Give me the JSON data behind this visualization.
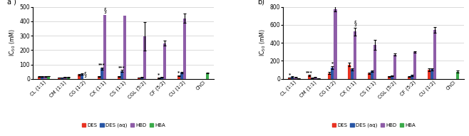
{
  "categories": [
    "CL (1:1)",
    "CM (1:1)",
    "CG (1:2)",
    "CX (1:1)",
    "CS (1:1)",
    "CGL (5:2)",
    "CF (5:2)",
    "CU (1:2)",
    "ChCl"
  ],
  "panel_a": {
    "ylabel": "IC$_{50}$ (mM)",
    "ylim": [
      0,
      500
    ],
    "yticks": [
      0,
      100,
      200,
      300,
      400,
      500
    ],
    "DES": [
      15,
      8,
      30,
      17,
      17,
      8,
      7,
      22,
      0
    ],
    "DESaq": [
      17,
      9,
      35,
      72,
      55,
      10,
      12,
      45,
      0
    ],
    "HBD": [
      17,
      12,
      0,
      445,
      440,
      295,
      248,
      420,
      0
    ],
    "HBA": [
      19,
      12,
      0,
      0,
      0,
      0,
      0,
      0,
      40
    ],
    "DES_err": [
      2,
      1,
      5,
      2,
      2,
      1,
      1,
      3,
      0
    ],
    "DESaq_err": [
      2,
      1,
      4,
      8,
      7,
      2,
      2,
      5,
      0
    ],
    "HBD_err": [
      2,
      1,
      0,
      0,
      0,
      100,
      18,
      32,
      0
    ],
    "HBA_err": [
      2,
      1,
      0,
      0,
      0,
      0,
      0,
      0,
      4
    ],
    "annotations": {
      "CG (1:2)": {
        "HBD": "§"
      },
      "CX (1:1)": {
        "HBD": "§",
        "DESaq": "***"
      },
      "CS (1:1)": {
        "DESaq": "***"
      },
      "CF (5:2)": {
        "DES": "*"
      },
      "CU (1:2)": {
        "DES": "*"
      }
    }
  },
  "panel_b": {
    "ylabel": "IC$_{50}$ (mM)",
    "ylim": [
      0,
      800
    ],
    "yticks": [
      0,
      200,
      400,
      600,
      800
    ],
    "DES": [
      15,
      38,
      65,
      160,
      60,
      28,
      25,
      100,
      0
    ],
    "DESaq": [
      22,
      12,
      125,
      105,
      85,
      35,
      38,
      105,
      0
    ],
    "HBD": [
      18,
      18,
      775,
      525,
      375,
      270,
      300,
      545,
      0
    ],
    "HBA": [
      8,
      8,
      0,
      0,
      0,
      0,
      0,
      0,
      80
    ],
    "DES_err": [
      3,
      5,
      10,
      20,
      8,
      4,
      4,
      14,
      0
    ],
    "DESaq_err": [
      4,
      3,
      15,
      15,
      10,
      5,
      5,
      12,
      0
    ],
    "HBD_err": [
      2,
      2,
      28,
      42,
      55,
      10,
      10,
      32,
      0
    ],
    "HBA_err": [
      2,
      2,
      0,
      0,
      0,
      0,
      0,
      0,
      14
    ],
    "annotations": {
      "CL (1:1)": {
        "DES": "*"
      },
      "CM (1:1)": {
        "DES": "***"
      },
      "CG (1:2)": {
        "DESaq": "*"
      },
      "CX (1:1)": {
        "HBD": "§"
      }
    }
  },
  "colors": {
    "DES": "#e83323",
    "DESaq": "#2856a5",
    "HBD": "#8e5da8",
    "HBA": "#3aaa4a"
  },
  "legend_labels": [
    "DES",
    "DES (aq)",
    "HBD",
    "HBA"
  ],
  "bar_width": 0.15
}
